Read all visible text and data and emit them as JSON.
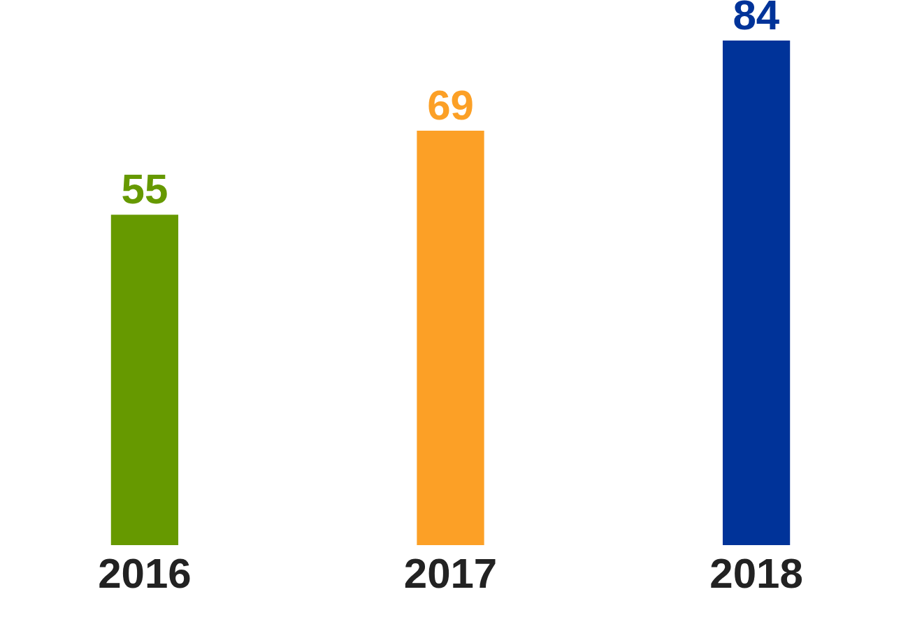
{
  "chart_data": {
    "type": "bar",
    "categories": [
      "2016",
      "2017",
      "2018"
    ],
    "values": [
      55,
      69,
      84
    ],
    "colors": [
      "#669900",
      "#fca026",
      "#003399"
    ],
    "data_labels": true
  }
}
